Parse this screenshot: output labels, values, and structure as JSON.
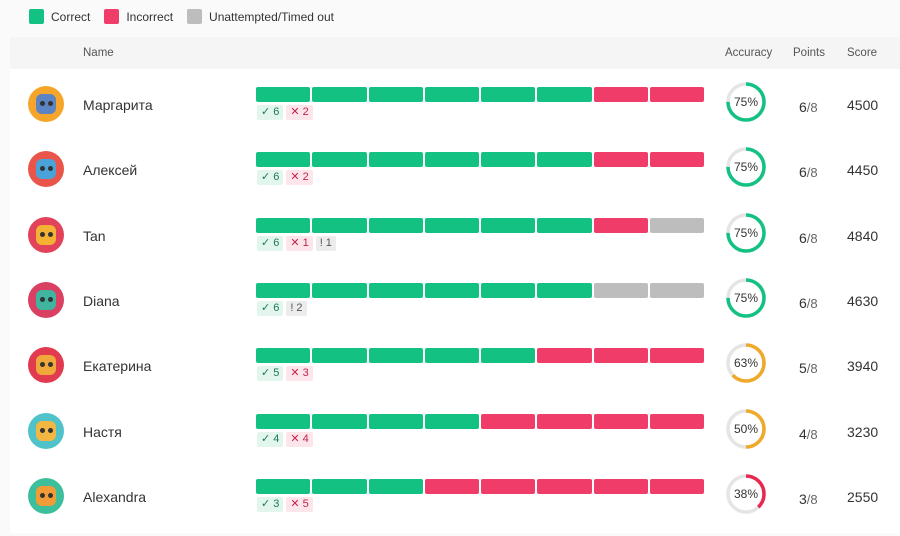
{
  "colors": {
    "correct": "#13c283",
    "incorrect": "#f03c69",
    "unattempted": "#bdbdbd",
    "ring_track": "#e5e5e5",
    "ring_mid": "#efaa2c"
  },
  "legend": [
    {
      "label": "Correct",
      "color": "#13c283"
    },
    {
      "label": "Incorrect",
      "color": "#f03c69"
    },
    {
      "label": "Unattempted/Timed out",
      "color": "#bdbdbd"
    }
  ],
  "header": {
    "name": "Name",
    "accuracy": "Accuracy",
    "points": "Points",
    "score": "Score"
  },
  "players": [
    {
      "name": "Маргарита",
      "avatar_bg": "#f4a52a",
      "avatar_face": "#5b84c4",
      "results": [
        "c",
        "c",
        "c",
        "c",
        "c",
        "c",
        "i",
        "i"
      ],
      "tags": [
        {
          "type": "c",
          "icon": "✓",
          "count": "6"
        },
        {
          "type": "i",
          "icon": "✕",
          "count": "2"
        }
      ],
      "accuracy": 0.75,
      "accuracy_label": "75%",
      "ring_color": "#13c283",
      "points": "6",
      "points_total": "/8",
      "score": "4500"
    },
    {
      "name": "Алексей",
      "avatar_bg": "#e9554b",
      "avatar_face": "#4aa3d8",
      "results": [
        "c",
        "c",
        "c",
        "c",
        "c",
        "c",
        "i",
        "i"
      ],
      "tags": [
        {
          "type": "c",
          "icon": "✓",
          "count": "6"
        },
        {
          "type": "i",
          "icon": "✕",
          "count": "2"
        }
      ],
      "accuracy": 0.75,
      "accuracy_label": "75%",
      "ring_color": "#13c283",
      "points": "6",
      "points_total": "/8",
      "score": "4450"
    },
    {
      "name": "Tan",
      "avatar_bg": "#e2435a",
      "avatar_face": "#f3b233",
      "results": [
        "c",
        "c",
        "c",
        "c",
        "c",
        "c",
        "i",
        "u"
      ],
      "tags": [
        {
          "type": "c",
          "icon": "✓",
          "count": "6"
        },
        {
          "type": "i",
          "icon": "✕",
          "count": "1"
        },
        {
          "type": "u",
          "icon": "!",
          "count": "1"
        }
      ],
      "accuracy": 0.75,
      "accuracy_label": "75%",
      "ring_color": "#13c283",
      "points": "6",
      "points_total": "/8",
      "score": "4840"
    },
    {
      "name": "Diana",
      "avatar_bg": "#d94062",
      "avatar_face": "#3fb5a0",
      "results": [
        "c",
        "c",
        "c",
        "c",
        "c",
        "c",
        "u",
        "u"
      ],
      "tags": [
        {
          "type": "c",
          "icon": "✓",
          "count": "6"
        },
        {
          "type": "u",
          "icon": "!",
          "count": "2"
        }
      ],
      "accuracy": 0.75,
      "accuracy_label": "75%",
      "ring_color": "#13c283",
      "points": "6",
      "points_total": "/8",
      "score": "4630"
    },
    {
      "name": "Екатерина",
      "avatar_bg": "#e23b4f",
      "avatar_face": "#f1a83a",
      "results": [
        "c",
        "c",
        "c",
        "c",
        "c",
        "i",
        "i",
        "i"
      ],
      "tags": [
        {
          "type": "c",
          "icon": "✓",
          "count": "5"
        },
        {
          "type": "i",
          "icon": "✕",
          "count": "3"
        }
      ],
      "accuracy": 0.63,
      "accuracy_label": "63%",
      "ring_color": "#efaa2c",
      "points": "5",
      "points_total": "/8",
      "score": "3940"
    },
    {
      "name": "Настя",
      "avatar_bg": "#4fc3c9",
      "avatar_face": "#f2b643",
      "results": [
        "c",
        "c",
        "c",
        "c",
        "i",
        "i",
        "i",
        "i"
      ],
      "tags": [
        {
          "type": "c",
          "icon": "✓",
          "count": "4"
        },
        {
          "type": "i",
          "icon": "✕",
          "count": "4"
        }
      ],
      "accuracy": 0.5,
      "accuracy_label": "50%",
      "ring_color": "#efaa2c",
      "points": "4",
      "points_total": "/8",
      "score": "3230"
    },
    {
      "name": "Alexandra",
      "avatar_bg": "#3cbf9a",
      "avatar_face": "#f29c38",
      "results": [
        "c",
        "c",
        "c",
        "i",
        "i",
        "i",
        "i",
        "i"
      ],
      "tags": [
        {
          "type": "c",
          "icon": "✓",
          "count": "3"
        },
        {
          "type": "i",
          "icon": "✕",
          "count": "5"
        }
      ],
      "accuracy": 0.38,
      "accuracy_label": "38%",
      "ring_color": "#e8284f",
      "points": "3",
      "points_total": "/8",
      "score": "2550"
    }
  ]
}
